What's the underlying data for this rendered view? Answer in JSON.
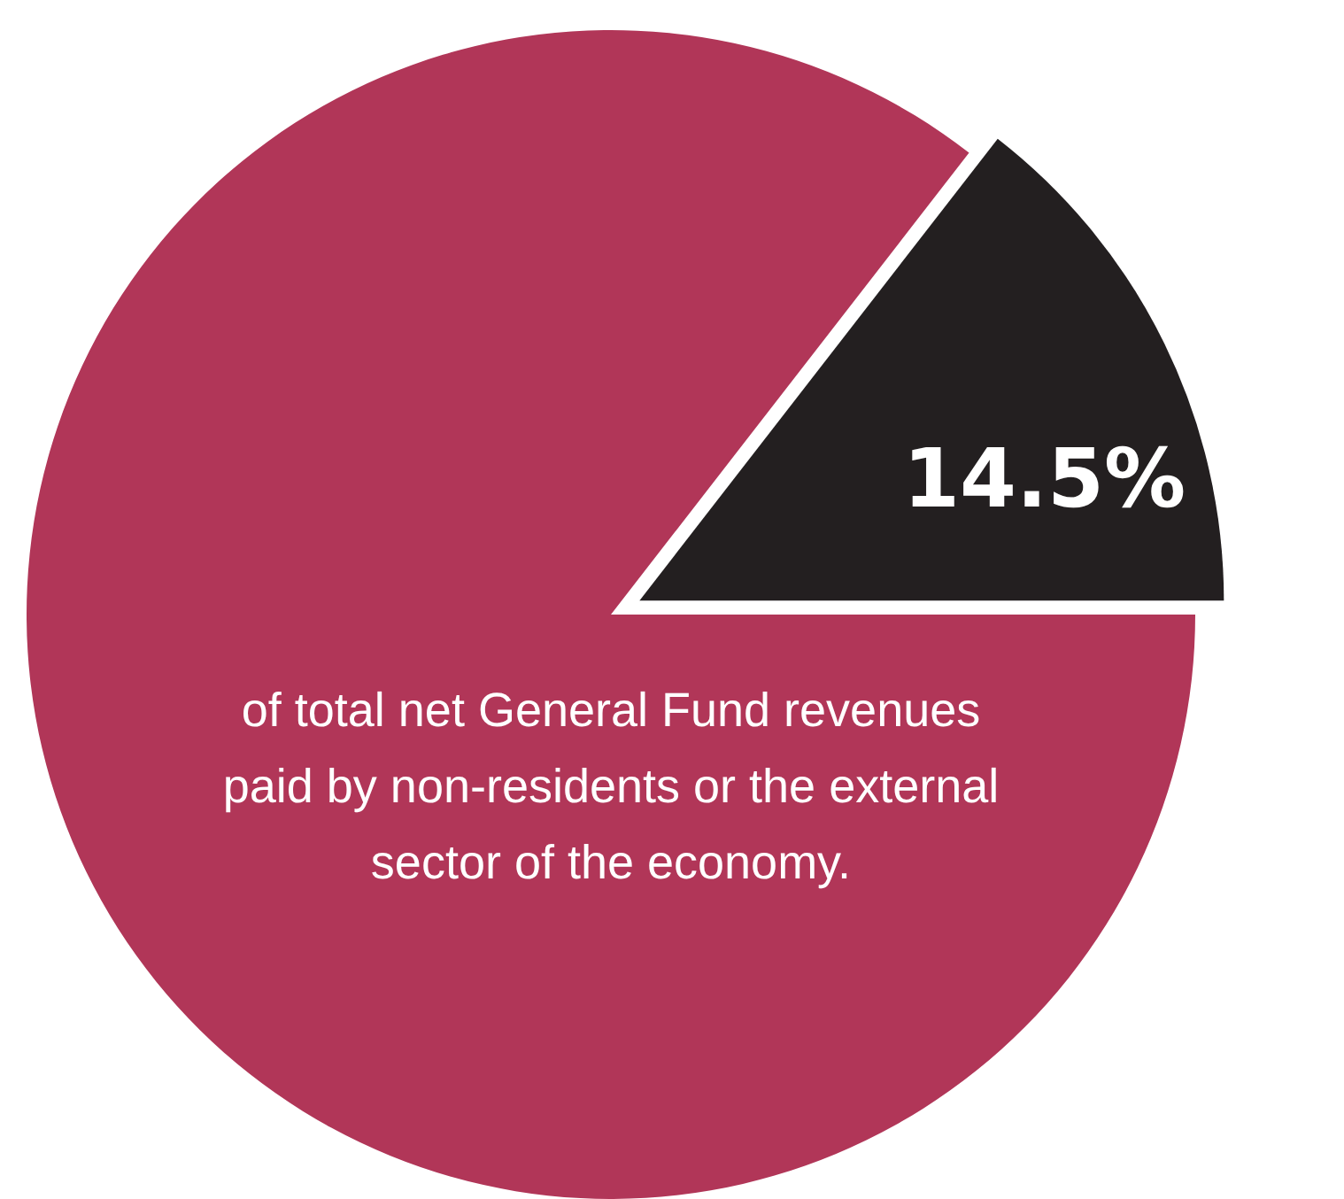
{
  "chart_data": {
    "type": "pie",
    "categories": [
      null,
      null
    ],
    "values": [
      14.5,
      85.5
    ],
    "colors": [
      "#231f20",
      "#b13658"
    ],
    "value_labels": [
      "14.5%",
      null
    ],
    "annotations": [
      "of total net General Fund revenues paid by non-residents or the external sector of the economy."
    ]
  }
}
